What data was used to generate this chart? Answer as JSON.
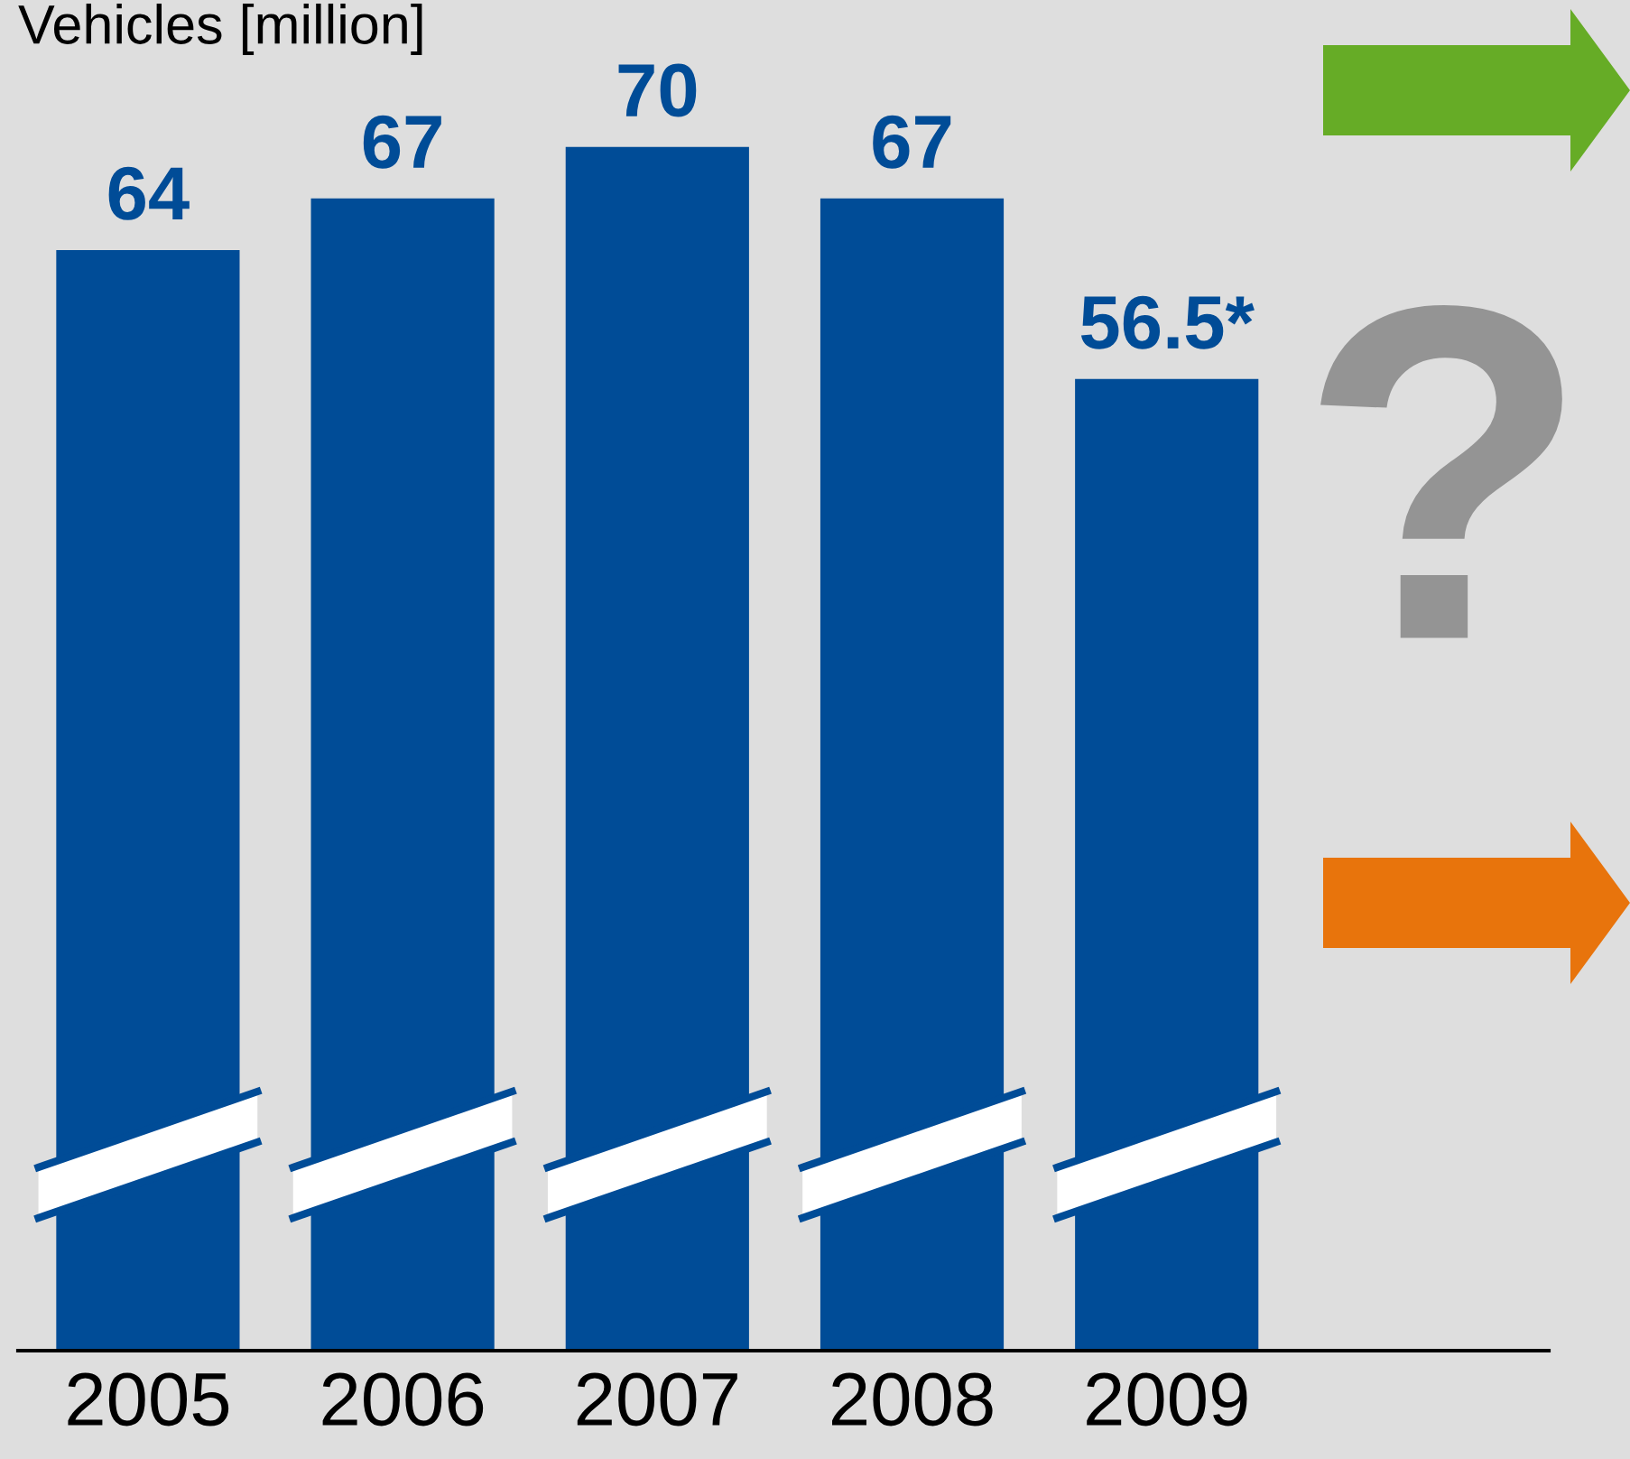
{
  "chart_data": {
    "type": "bar",
    "ylabel": "Vehicles [million]",
    "categories": [
      "2005",
      "2006",
      "2007",
      "2008",
      "2009"
    ],
    "values": [
      64,
      67,
      70,
      67,
      56.5
    ],
    "value_labels": [
      "64",
      "67",
      "70",
      "67",
      "56.5*"
    ],
    "color": "#004c97",
    "annotations": [
      "?"
    ]
  }
}
